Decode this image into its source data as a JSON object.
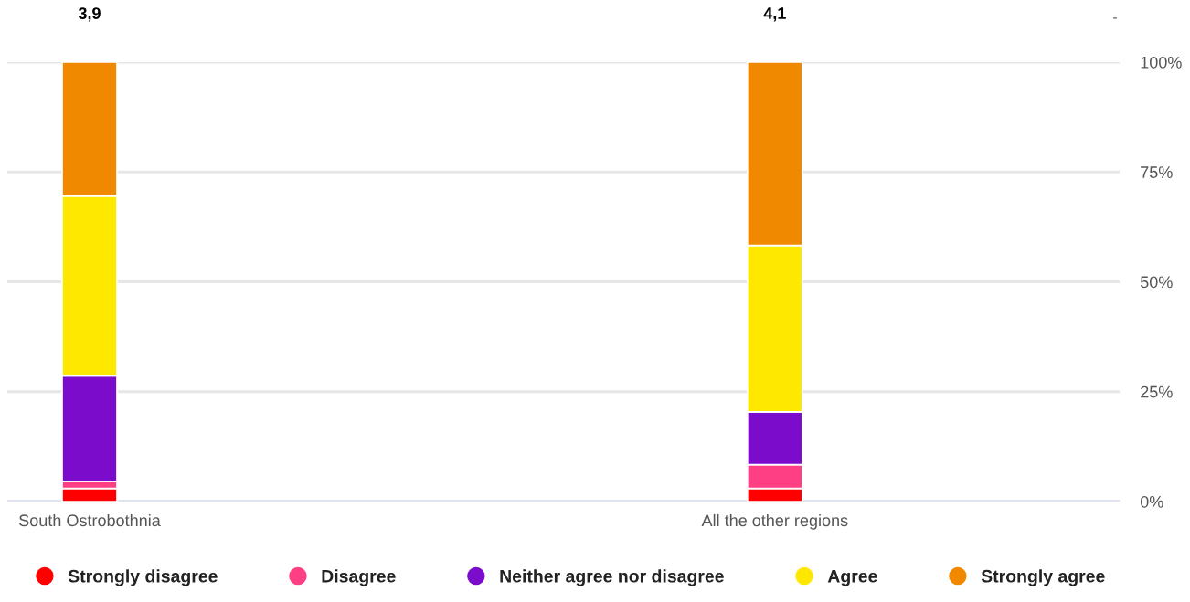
{
  "chart_data": {
    "type": "bar",
    "stacked": true,
    "categories": [
      "South Ostrobothnia",
      "All the other regions"
    ],
    "series": [
      {
        "name": "Strongly disagree",
        "color": "#ff0000",
        "values": [
          3.0,
          3.0
        ]
      },
      {
        "name": "Disagree",
        "color": "#ff3f84",
        "values": [
          1.6,
          5.4
        ]
      },
      {
        "name": "Neither agree nor disagree",
        "color": "#7b0ccc",
        "values": [
          24.0,
          12.0
        ]
      },
      {
        "name": "Agree",
        "color": "#ffe800",
        "values": [
          40.9,
          37.9
        ]
      },
      {
        "name": "Strongly agree",
        "color": "#f08800",
        "values": [
          30.5,
          41.7
        ]
      }
    ],
    "ylim": [
      0,
      100
    ],
    "yticks": [
      {
        "value": 0,
        "label": "0%"
      },
      {
        "value": 25,
        "label": "25%"
      },
      {
        "value": 50,
        "label": "50%"
      },
      {
        "value": 75,
        "label": "75%"
      },
      {
        "value": 100,
        "label": "100%"
      }
    ],
    "grid": "y",
    "legend": "bottom",
    "marker": "circle",
    "annotations": [
      "3,9",
      "4,1",
      "-"
    ]
  }
}
